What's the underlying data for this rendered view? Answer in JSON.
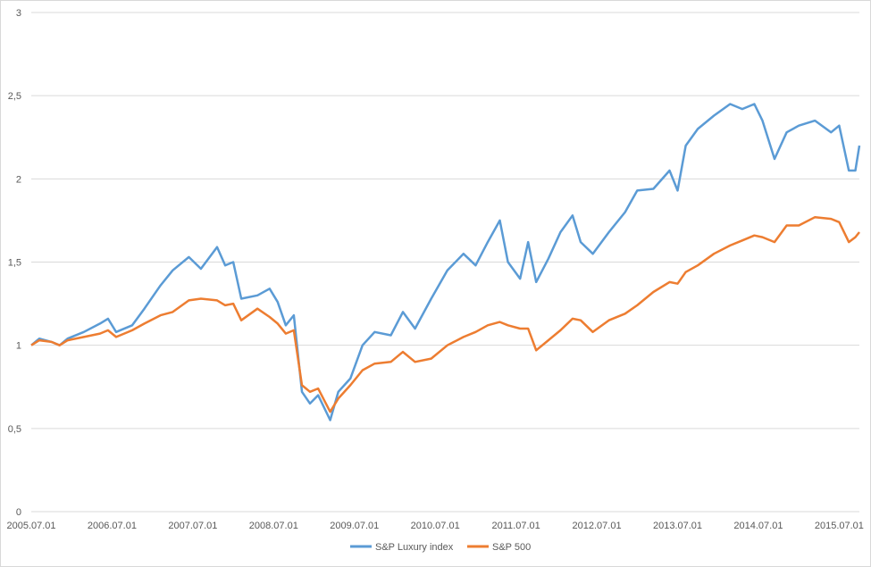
{
  "chart_data": {
    "type": "line",
    "title": "",
    "xlabel": "",
    "ylabel": "",
    "ylim": [
      0,
      3
    ],
    "y_ticks": [
      "0",
      "0,5",
      "1",
      "1,5",
      "2",
      "2,5",
      "3"
    ],
    "y_tick_values": [
      0,
      0.5,
      1,
      1.5,
      2,
      2.5,
      3
    ],
    "x_tick_labels": [
      "2005.07.01",
      "2006.07.01",
      "2007.07.01",
      "2008.07.01",
      "2009.07.01",
      "2010.07.01",
      "2011.07.01",
      "2012.07.01",
      "2013.07.01",
      "2014.07.01",
      "2015.07.01"
    ],
    "x_range": [
      2005.5,
      2015.75
    ],
    "grid": "horizontal",
    "legend_position": "bottom",
    "series": [
      {
        "name": "S&P Luxury index",
        "color": "#5B9BD5",
        "points": [
          [
            2005.5,
            1.0
          ],
          [
            2005.6,
            1.04
          ],
          [
            2005.75,
            1.02
          ],
          [
            2005.85,
            1.0
          ],
          [
            2005.95,
            1.04
          ],
          [
            2006.15,
            1.08
          ],
          [
            2006.35,
            1.13
          ],
          [
            2006.45,
            1.16
          ],
          [
            2006.55,
            1.08
          ],
          [
            2006.75,
            1.12
          ],
          [
            2006.9,
            1.22
          ],
          [
            2007.1,
            1.36
          ],
          [
            2007.25,
            1.45
          ],
          [
            2007.45,
            1.53
          ],
          [
            2007.6,
            1.46
          ],
          [
            2007.8,
            1.59
          ],
          [
            2007.9,
            1.48
          ],
          [
            2008.0,
            1.5
          ],
          [
            2008.1,
            1.28
          ],
          [
            2008.3,
            1.3
          ],
          [
            2008.45,
            1.34
          ],
          [
            2008.55,
            1.26
          ],
          [
            2008.65,
            1.12
          ],
          [
            2008.75,
            1.18
          ],
          [
            2008.85,
            0.72
          ],
          [
            2008.95,
            0.65
          ],
          [
            2009.05,
            0.7
          ],
          [
            2009.2,
            0.55
          ],
          [
            2009.3,
            0.72
          ],
          [
            2009.45,
            0.8
          ],
          [
            2009.6,
            1.0
          ],
          [
            2009.75,
            1.08
          ],
          [
            2009.95,
            1.06
          ],
          [
            2010.1,
            1.2
          ],
          [
            2010.25,
            1.1
          ],
          [
            2010.45,
            1.28
          ],
          [
            2010.65,
            1.45
          ],
          [
            2010.85,
            1.55
          ],
          [
            2011.0,
            1.48
          ],
          [
            2011.15,
            1.62
          ],
          [
            2011.3,
            1.75
          ],
          [
            2011.4,
            1.5
          ],
          [
            2011.55,
            1.4
          ],
          [
            2011.65,
            1.62
          ],
          [
            2011.75,
            1.38
          ],
          [
            2011.9,
            1.52
          ],
          [
            2012.05,
            1.68
          ],
          [
            2012.2,
            1.78
          ],
          [
            2012.3,
            1.62
          ],
          [
            2012.45,
            1.55
          ],
          [
            2012.65,
            1.68
          ],
          [
            2012.85,
            1.8
          ],
          [
            2013.0,
            1.93
          ],
          [
            2013.2,
            1.94
          ],
          [
            2013.4,
            2.05
          ],
          [
            2013.5,
            1.93
          ],
          [
            2013.6,
            2.2
          ],
          [
            2013.75,
            2.3
          ],
          [
            2013.95,
            2.38
          ],
          [
            2014.15,
            2.45
          ],
          [
            2014.3,
            2.42
          ],
          [
            2014.45,
            2.45
          ],
          [
            2014.55,
            2.35
          ],
          [
            2014.7,
            2.12
          ],
          [
            2014.85,
            2.28
          ],
          [
            2015.0,
            2.32
          ],
          [
            2015.2,
            2.35
          ],
          [
            2015.4,
            2.28
          ],
          [
            2015.5,
            2.32
          ],
          [
            2015.62,
            2.05
          ],
          [
            2015.7,
            2.05
          ],
          [
            2015.75,
            2.2
          ]
        ]
      },
      {
        "name": "S&P 500",
        "color": "#ED7D31",
        "points": [
          [
            2005.5,
            1.0
          ],
          [
            2005.6,
            1.03
          ],
          [
            2005.75,
            1.02
          ],
          [
            2005.85,
            1.0
          ],
          [
            2005.95,
            1.03
          ],
          [
            2006.15,
            1.05
          ],
          [
            2006.35,
            1.07
          ],
          [
            2006.45,
            1.09
          ],
          [
            2006.55,
            1.05
          ],
          [
            2006.75,
            1.09
          ],
          [
            2006.9,
            1.13
          ],
          [
            2007.1,
            1.18
          ],
          [
            2007.25,
            1.2
          ],
          [
            2007.45,
            1.27
          ],
          [
            2007.6,
            1.28
          ],
          [
            2007.8,
            1.27
          ],
          [
            2007.9,
            1.24
          ],
          [
            2008.0,
            1.25
          ],
          [
            2008.1,
            1.15
          ],
          [
            2008.3,
            1.22
          ],
          [
            2008.45,
            1.17
          ],
          [
            2008.55,
            1.13
          ],
          [
            2008.65,
            1.07
          ],
          [
            2008.75,
            1.09
          ],
          [
            2008.85,
            0.76
          ],
          [
            2008.95,
            0.72
          ],
          [
            2009.05,
            0.74
          ],
          [
            2009.2,
            0.6
          ],
          [
            2009.3,
            0.68
          ],
          [
            2009.45,
            0.76
          ],
          [
            2009.6,
            0.85
          ],
          [
            2009.75,
            0.89
          ],
          [
            2009.95,
            0.9
          ],
          [
            2010.1,
            0.96
          ],
          [
            2010.25,
            0.9
          ],
          [
            2010.45,
            0.92
          ],
          [
            2010.65,
            1.0
          ],
          [
            2010.85,
            1.05
          ],
          [
            2011.0,
            1.08
          ],
          [
            2011.15,
            1.12
          ],
          [
            2011.3,
            1.14
          ],
          [
            2011.4,
            1.12
          ],
          [
            2011.55,
            1.1
          ],
          [
            2011.65,
            1.1
          ],
          [
            2011.75,
            0.97
          ],
          [
            2011.9,
            1.03
          ],
          [
            2012.05,
            1.09
          ],
          [
            2012.2,
            1.16
          ],
          [
            2012.3,
            1.15
          ],
          [
            2012.45,
            1.08
          ],
          [
            2012.65,
            1.15
          ],
          [
            2012.85,
            1.19
          ],
          [
            2013.0,
            1.24
          ],
          [
            2013.2,
            1.32
          ],
          [
            2013.4,
            1.38
          ],
          [
            2013.5,
            1.37
          ],
          [
            2013.6,
            1.44
          ],
          [
            2013.75,
            1.48
          ],
          [
            2013.95,
            1.55
          ],
          [
            2014.15,
            1.6
          ],
          [
            2014.3,
            1.63
          ],
          [
            2014.45,
            1.66
          ],
          [
            2014.55,
            1.65
          ],
          [
            2014.7,
            1.62
          ],
          [
            2014.85,
            1.72
          ],
          [
            2015.0,
            1.72
          ],
          [
            2015.2,
            1.77
          ],
          [
            2015.4,
            1.76
          ],
          [
            2015.5,
            1.74
          ],
          [
            2015.62,
            1.62
          ],
          [
            2015.7,
            1.65
          ],
          [
            2015.75,
            1.68
          ]
        ]
      }
    ]
  }
}
